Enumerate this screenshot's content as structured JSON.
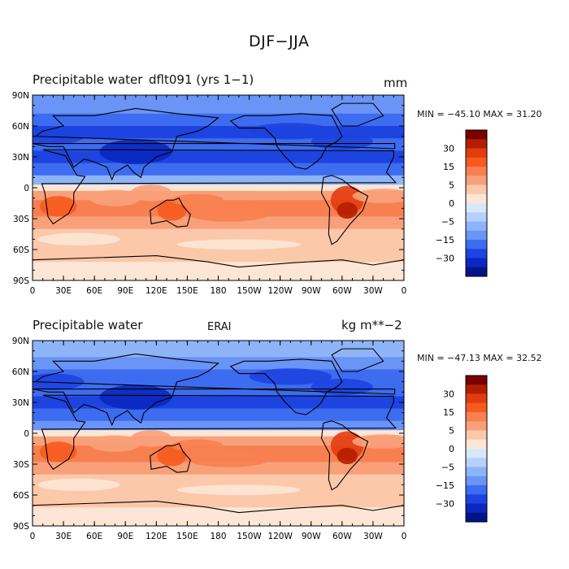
{
  "figure": {
    "title": "DJF−JJA"
  },
  "colors": {
    "scale": [
      "#7a0000",
      "#b41e00",
      "#e23c10",
      "#f65a1e",
      "#f88050",
      "#f8a07a",
      "#fcc8aa",
      "#fde6d6",
      "#d8e8fb",
      "#b7d0fb",
      "#8eb4f8",
      "#6a94f5",
      "#3e6cf0",
      "#1d44e0",
      "#0a28c0",
      "#00148a"
    ],
    "land_outline": "#000000"
  },
  "lat_ticks": [
    "90N",
    "60N",
    "30N",
    "0",
    "30S",
    "60S",
    "90S"
  ],
  "lon_ticks": [
    "0",
    "30E",
    "60E",
    "90E",
    "120E",
    "150E",
    "180",
    "150W",
    "120W",
    "90W",
    "60W",
    "30W",
    "0"
  ],
  "colorbar_labels": [
    "30",
    "15",
    "5",
    "0",
    "−5",
    "−15",
    "−30"
  ],
  "panels": [
    {
      "label_left": "Precipitable water",
      "label_center": "dflt091 (yrs 1−1)",
      "label_right": "mm",
      "stats": "MIN = −45.10  MAX =   31.20"
    },
    {
      "label_left": "Precipitable water",
      "label_center": "ERAI",
      "label_right": "kg m**−2",
      "stats": "MIN = −47.13  MAX =   32.52"
    }
  ]
}
